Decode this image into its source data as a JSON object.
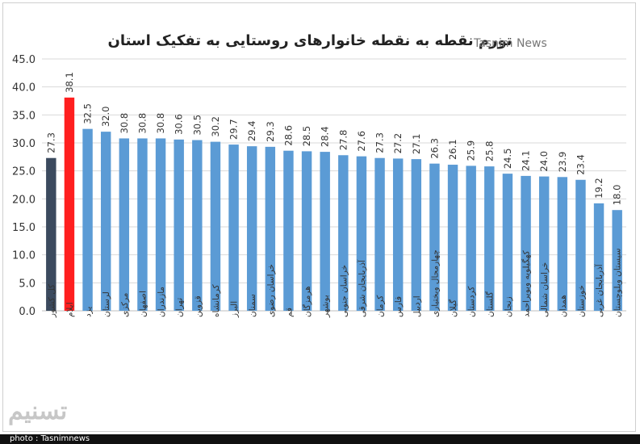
{
  "title": "تورم نقطه به نقطه خانوارهای روستایی به تفکیک استان",
  "watermark": "Tasnim News",
  "logo_text": "تسنیم",
  "footer": "photo : Tasnimnews",
  "colors": {
    "national": "#3b4a5e",
    "highlight": "#ff1f1f",
    "default": "#5b9bd5",
    "grid": "#d9d9d9"
  },
  "chart_data": {
    "type": "bar",
    "title": "تورم نقطه به نقطه خانوارهای روستایی به تفکیک استان",
    "ylim": [
      0,
      45
    ],
    "yticks": [
      "0.0",
      "5.0",
      "10.0",
      "15.0",
      "20.0",
      "25.0",
      "30.0",
      "35.0",
      "40.0",
      "45.0"
    ],
    "grid": true,
    "categories": [
      "کل کشور",
      "ایلام",
      "یزد",
      "لرستان",
      "مرکزی",
      "اصفهان",
      "مازندران",
      "تهران",
      "قزوین",
      "کرمانشاه",
      "البرز",
      "سمنان",
      "خراسان رضوی",
      "قم",
      "هرمزگان",
      "بوشهر",
      "خراسان جنوبی",
      "آذربایجان شرقی",
      "کرمان",
      "فارس",
      "اردبیل",
      "چهارمحال وبختیاری",
      "گیلان",
      "کردستان",
      "گلستان",
      "زنجان",
      "کهگیلویه وبویراحمد",
      "خراسان شمالی",
      "همدان",
      "خوزستان",
      "آذربایجان غربی",
      "سیستان وبلوچستان"
    ],
    "values": [
      27.3,
      38.1,
      32.5,
      32.0,
      30.8,
      30.8,
      30.8,
      30.6,
      30.5,
      30.2,
      29.7,
      29.4,
      29.3,
      28.6,
      28.5,
      28.4,
      27.8,
      27.6,
      27.3,
      27.2,
      27.1,
      26.3,
      26.1,
      25.9,
      25.8,
      24.5,
      24.1,
      24.0,
      23.9,
      23.4,
      19.2,
      18.0
    ],
    "value_labels": [
      "27.3",
      "38.1",
      "32.5",
      "32.0",
      "30.8",
      "30.8",
      "30.8",
      "30.6",
      "30.5",
      "30.2",
      "29.7",
      "29.4",
      "29.3",
      "28.6",
      "28.5",
      "28.4",
      "27.8",
      "27.6",
      "27.3",
      "27.2",
      "27.1",
      "26.3",
      "26.1",
      "25.9",
      "25.8",
      "24.5",
      "24.1",
      "24.0",
      "23.9",
      "23.4",
      "19.2",
      "18.0"
    ]
  }
}
